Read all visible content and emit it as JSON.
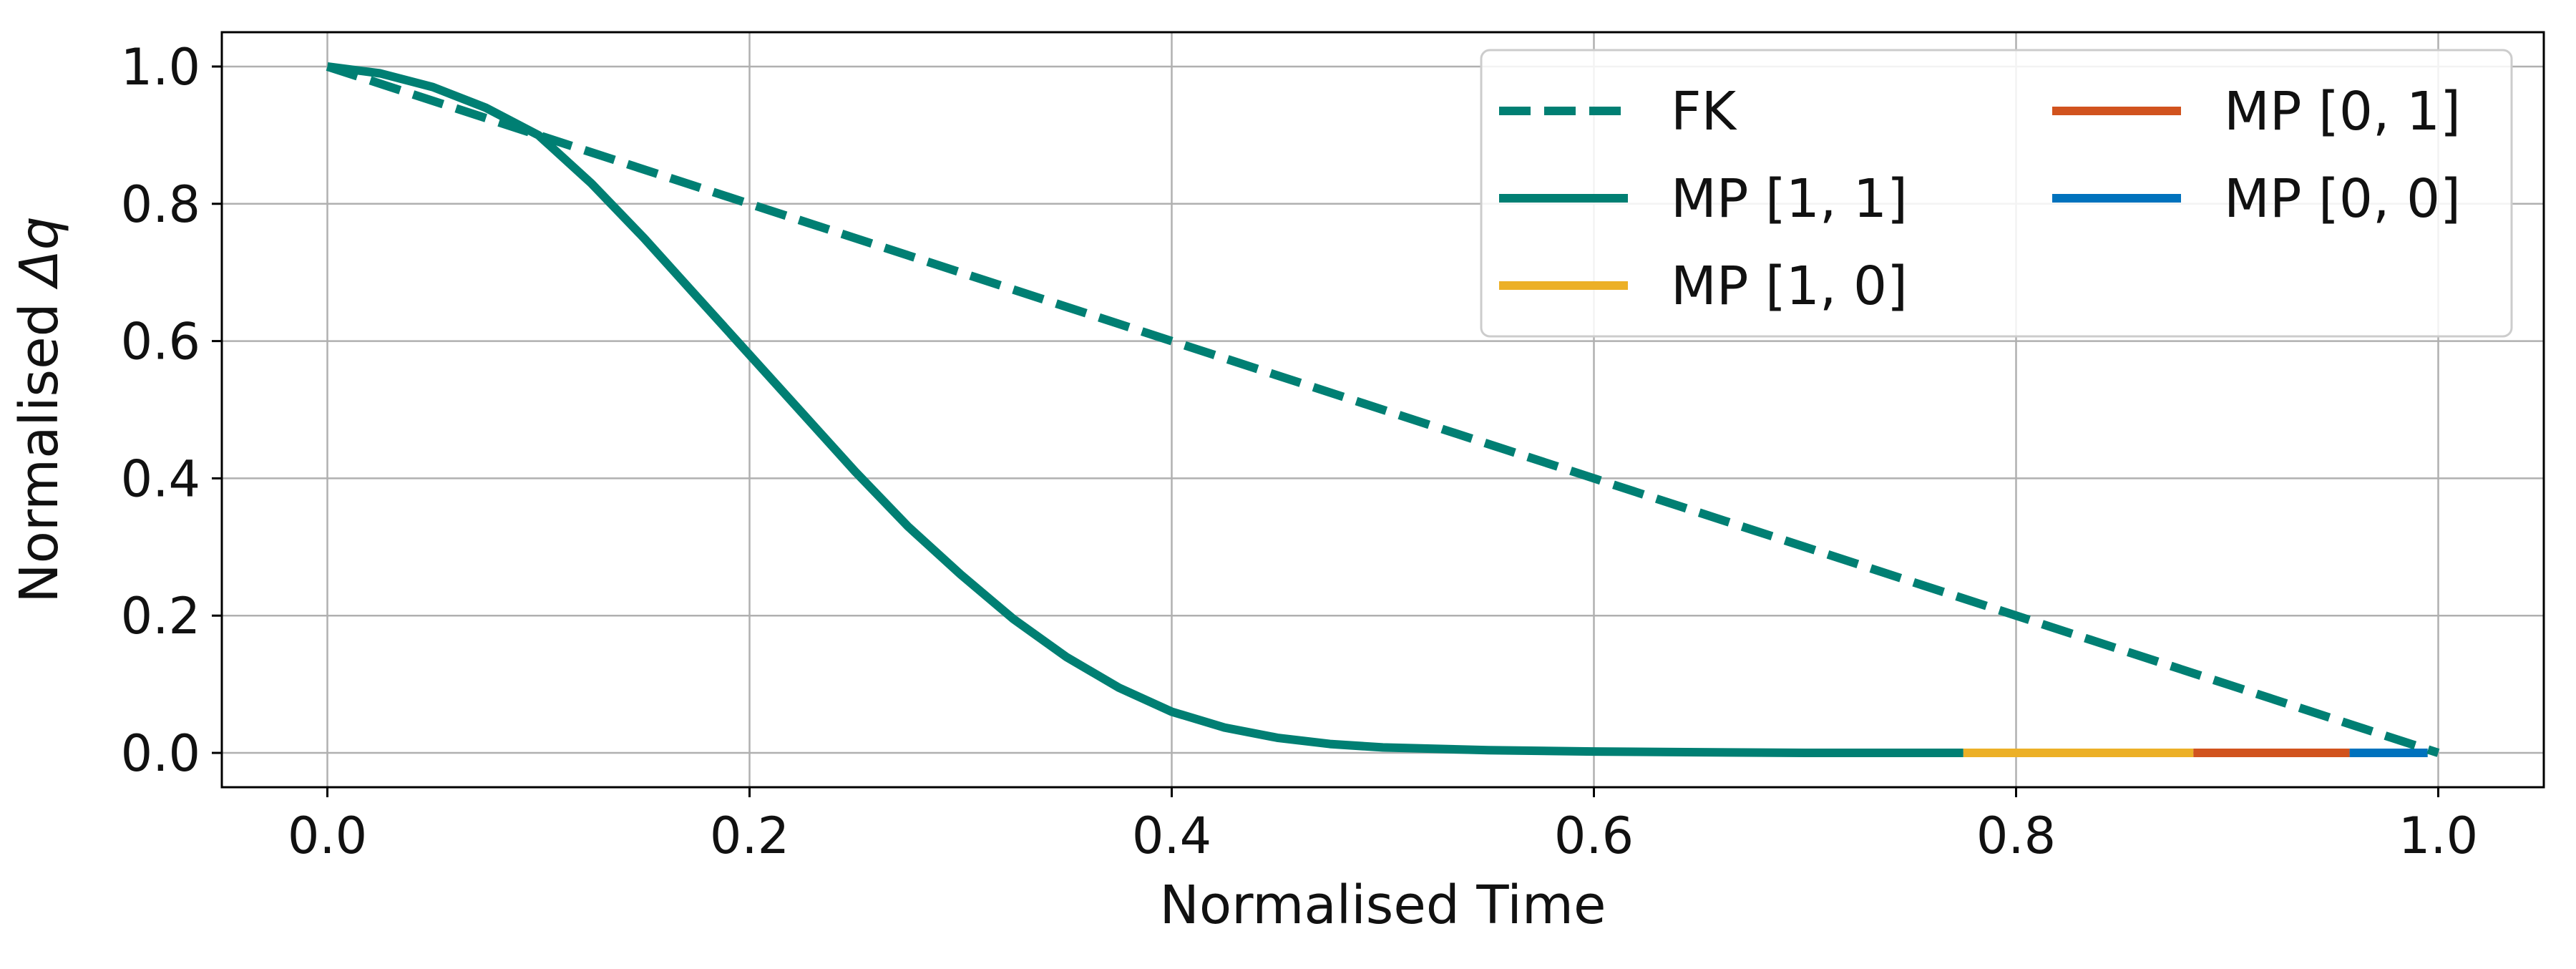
{
  "chart_data": {
    "type": "line",
    "title": "",
    "xlabel": "Normalised Time",
    "ylabel": "Normalised Δq",
    "ylabel_prefix": "Normalised ",
    "ylabel_symbol": "Δq",
    "xlim": [
      -0.05,
      1.05
    ],
    "ylim": [
      -0.05,
      1.05
    ],
    "xticks": [
      0.0,
      0.2,
      0.4,
      0.6,
      0.8,
      1.0
    ],
    "xtick_labels": [
      "0.0",
      "0.2",
      "0.4",
      "0.6",
      "0.8",
      "1.0"
    ],
    "yticks": [
      0.0,
      0.2,
      0.4,
      0.6,
      0.8,
      1.0
    ],
    "ytick_labels": [
      "0.0",
      "0.2",
      "0.4",
      "0.6",
      "0.8",
      "1.0"
    ],
    "grid": true,
    "legend_position": "top-right",
    "legend_columns": 2,
    "series": [
      {
        "name": "FK",
        "style": "dashed",
        "color": "#007f73",
        "x": [
          0.0,
          1.0
        ],
        "y": [
          1.0,
          0.0
        ]
      },
      {
        "name": "MP [1, 1]",
        "style": "solid",
        "color": "#007f73",
        "x": [
          0.0,
          0.025,
          0.05,
          0.075,
          0.1,
          0.125,
          0.15,
          0.175,
          0.2,
          0.225,
          0.25,
          0.275,
          0.3,
          0.325,
          0.35,
          0.375,
          0.4,
          0.425,
          0.45,
          0.475,
          0.5,
          0.55,
          0.6,
          0.65,
          0.7,
          0.775
        ],
        "y": [
          1.0,
          0.99,
          0.97,
          0.94,
          0.9,
          0.83,
          0.75,
          0.665,
          0.58,
          0.495,
          0.41,
          0.33,
          0.26,
          0.195,
          0.14,
          0.095,
          0.06,
          0.037,
          0.022,
          0.013,
          0.008,
          0.004,
          0.002,
          0.001,
          0.0,
          0.0
        ]
      },
      {
        "name": "MP [1, 0]",
        "style": "solid",
        "color": "#ecb027",
        "x": [
          0.775,
          0.884
        ],
        "y": [
          0.0,
          0.0
        ]
      },
      {
        "name": "MP [0, 1]",
        "style": "solid",
        "color": "#d1531e",
        "x": [
          0.884,
          0.958
        ],
        "y": [
          0.0,
          0.0
        ]
      },
      {
        "name": "MP [0, 0]",
        "style": "solid",
        "color": "#0072bd",
        "x": [
          0.958,
          0.995
        ],
        "y": [
          0.0,
          0.0
        ]
      }
    ]
  }
}
